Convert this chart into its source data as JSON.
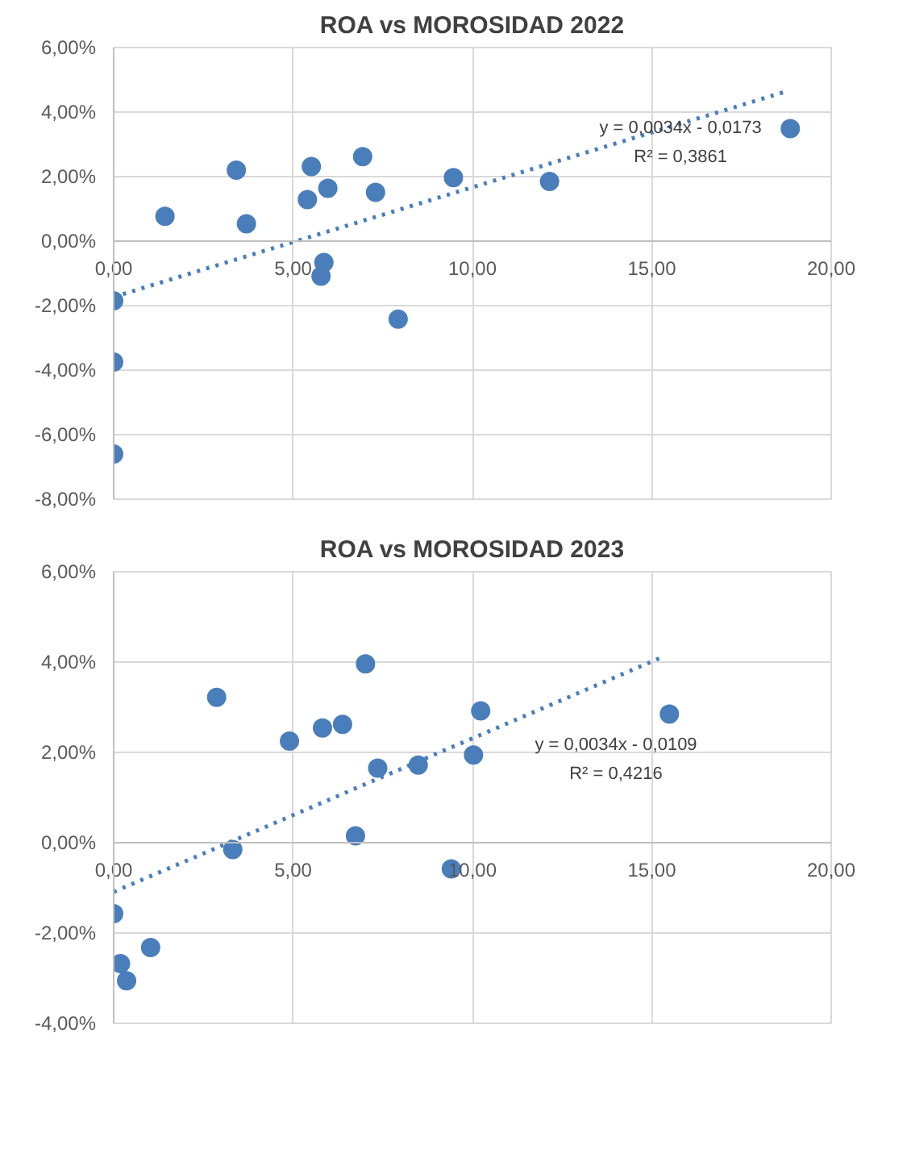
{
  "chart_data": [
    {
      "type": "scatter",
      "title": "ROA vs MOROSIDAD 2022",
      "xlim": [
        0,
        20
      ],
      "ylim": [
        -8,
        6
      ],
      "xticks": [
        {
          "value": 0,
          "label": "0,00"
        },
        {
          "value": 5,
          "label": "5,00"
        },
        {
          "value": 10,
          "label": "10,00"
        },
        {
          "value": 15,
          "label": "15,00"
        },
        {
          "value": 20,
          "label": "20,00"
        }
      ],
      "yticks": [
        {
          "value": -8,
          "label": "-8,00%"
        },
        {
          "value": -6,
          "label": "-6,00%"
        },
        {
          "value": -4,
          "label": "-4,00%"
        },
        {
          "value": -2,
          "label": "-2,00%"
        },
        {
          "value": 0,
          "label": "0,00%"
        },
        {
          "value": 2,
          "label": "2,00%"
        },
        {
          "value": 4,
          "label": "4,00%"
        },
        {
          "value": 6,
          "label": "6,00%"
        }
      ],
      "grid": true,
      "marker": "circle",
      "series": [
        {
          "color": "#4a7ebb",
          "x": [
            0,
            0,
            0,
            1.43,
            3.42,
            3.7,
            5.51,
            5.4,
            5.97,
            6.94,
            7.3,
            5.86,
            5.78,
            7.93,
            9.47,
            12.15,
            18.86
          ],
          "values": [
            -1.85,
            -3.75,
            -6.6,
            0.77,
            2.2,
            0.54,
            2.31,
            1.29,
            1.64,
            2.62,
            1.51,
            -0.66,
            -1.09,
            -2.42,
            1.97,
            1.85,
            3.49
          ]
        },
        {
          "type": "line",
          "line_style": "dotted",
          "marker": "none",
          "color": "#4a7ebb",
          "x": [
            0,
            18.8
          ],
          "values": [
            -1.73,
            4.66
          ]
        }
      ],
      "annotations": [
        "y = 0,0034x - 0,0173",
        "R² = 0,3861"
      ]
    },
    {
      "type": "scatter",
      "title": "ROA vs MOROSIDAD 2023",
      "xlim": [
        0,
        20
      ],
      "ylim": [
        -4,
        6
      ],
      "xticks": [
        {
          "value": 0,
          "label": "0,00"
        },
        {
          "value": 5,
          "label": "5,00"
        },
        {
          "value": 10,
          "label": "10,00"
        },
        {
          "value": 15,
          "label": "15,00"
        },
        {
          "value": 20,
          "label": "20,00"
        }
      ],
      "yticks": [
        {
          "value": -4,
          "label": "-4,00%"
        },
        {
          "value": -2,
          "label": "-2,00%"
        },
        {
          "value": 0,
          "label": "0,00%"
        },
        {
          "value": 2,
          "label": "2,00%"
        },
        {
          "value": 4,
          "label": "4,00%"
        },
        {
          "value": 6,
          "label": "6,00%"
        }
      ],
      "grid": true,
      "marker": "circle",
      "series": [
        {
          "color": "#4a7ebb",
          "x": [
            0,
            0.19,
            0.36,
            1.03,
            2.87,
            3.32,
            4.9,
            5.82,
            6.38,
            7.02,
            6.74,
            7.36,
            8.49,
            9.41,
            10.03,
            10.23,
            15.49
          ],
          "values": [
            -1.57,
            -2.68,
            -3.06,
            -2.32,
            3.22,
            -0.15,
            2.25,
            2.54,
            2.62,
            3.96,
            0.15,
            1.65,
            1.72,
            -0.58,
            1.94,
            2.92,
            2.85
          ]
        },
        {
          "type": "line",
          "line_style": "dotted",
          "marker": "none",
          "color": "#4a7ebb",
          "x": [
            0,
            15.32
          ],
          "values": [
            -1.09,
            4.12
          ]
        }
      ],
      "annotations": [
        "y = 0,0034x - 0,0109",
        "R² = 0,4216"
      ]
    }
  ]
}
